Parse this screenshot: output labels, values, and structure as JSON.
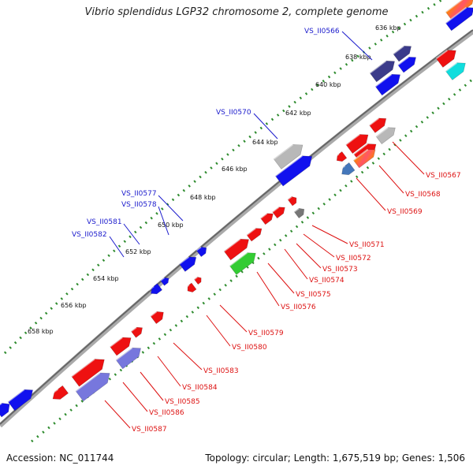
{
  "title": "Vibrio splendidus LGP32 chromosome 2, complete genome",
  "footer": {
    "accession": "Accession: NC_011744",
    "summary": "Topology: circular; Length: 1,675,519 bp; Genes: 1,506"
  },
  "colors": {
    "backbone": "#888888",
    "tick": "#2e8b2e",
    "label_outer": "#1a1acc",
    "label_inner": "#dd1111",
    "red": "#ee1111",
    "blue": "#1111ee",
    "navy": "#3b3b8a",
    "periwinkle": "#7777dd",
    "gray": "#b8b8b8",
    "darkgray": "#777777",
    "green": "#33cc33",
    "cyan": "#11dddd",
    "steel": "#4477bb",
    "orange": "#ff8800"
  },
  "scale_labels": [
    "636 kbp",
    "638 kbp",
    "640 kbp",
    "642 kbp",
    "644 kbp",
    "646 kbp",
    "648 kbp",
    "650 kbp",
    "652 kbp",
    "654 kbp",
    "656 kbp",
    "658 kbp"
  ],
  "outer_gene_labels": [
    "VS_II0566",
    "VS_II0570",
    "VS_II0577",
    "VS_II0578",
    "VS_II0581",
    "VS_II0582"
  ],
  "inner_gene_labels": [
    "VS_II0567",
    "VS_II0568",
    "VS_II0569",
    "VS_II0571",
    "VS_II0572",
    "VS_II0573",
    "VS_II0574",
    "VS_II0575",
    "VS_II0576",
    "VS_II0579",
    "VS_II0580",
    "VS_II0583",
    "VS_II0584",
    "VS_II0585",
    "VS_II0586",
    "VS_II0587"
  ]
}
